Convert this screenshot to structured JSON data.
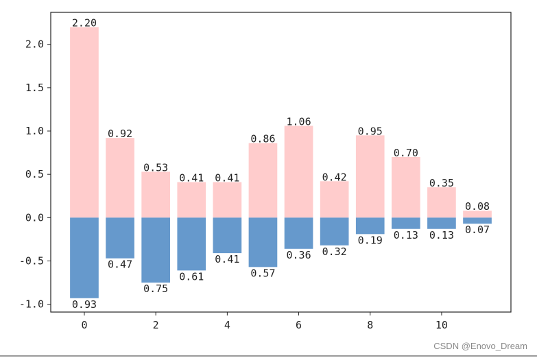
{
  "chart_data": {
    "type": "bar",
    "x": [
      0,
      1,
      2,
      3,
      4,
      5,
      6,
      7,
      8,
      9,
      10,
      11
    ],
    "series": [
      {
        "values": [
          2.2,
          0.92,
          0.53,
          0.41,
          0.41,
          0.86,
          1.06,
          0.42,
          0.95,
          0.7,
          0.35,
          0.08
        ],
        "labels": [
          "2.20",
          "0.92",
          "0.53",
          "0.41",
          "0.41",
          "0.86",
          "1.06",
          "0.42",
          "0.95",
          "0.70",
          "0.35",
          "0.08"
        ],
        "color": "#ffcccc"
      },
      {
        "values": [
          -0.93,
          -0.47,
          -0.75,
          -0.61,
          -0.41,
          -0.57,
          -0.36,
          -0.32,
          -0.19,
          -0.13,
          -0.13,
          -0.07
        ],
        "labels": [
          "0.93",
          "0.47",
          "0.75",
          "0.61",
          "0.41",
          "0.57",
          "0.36",
          "0.32",
          "0.19",
          "0.13",
          "0.13",
          "0.07"
        ],
        "color": "#6699cc"
      }
    ],
    "xticks": [
      0,
      2,
      4,
      6,
      8,
      10
    ],
    "xtick_labels": [
      "0",
      "2",
      "4",
      "6",
      "8",
      "10"
    ],
    "yticks": [
      -1.0,
      -0.5,
      0.0,
      0.5,
      1.0,
      1.5,
      2.0
    ],
    "ytick_labels": [
      "-1.0",
      "-0.5",
      "0.0",
      "0.5",
      "1.0",
      "1.5",
      "2.0"
    ],
    "xlim": [
      -0.94,
      11.94
    ],
    "ylim": [
      -1.09,
      2.37
    ],
    "grid": false,
    "title": "",
    "xlabel": "",
    "ylabel": ""
  },
  "watermark": "CSDN @Enovo_Dream"
}
